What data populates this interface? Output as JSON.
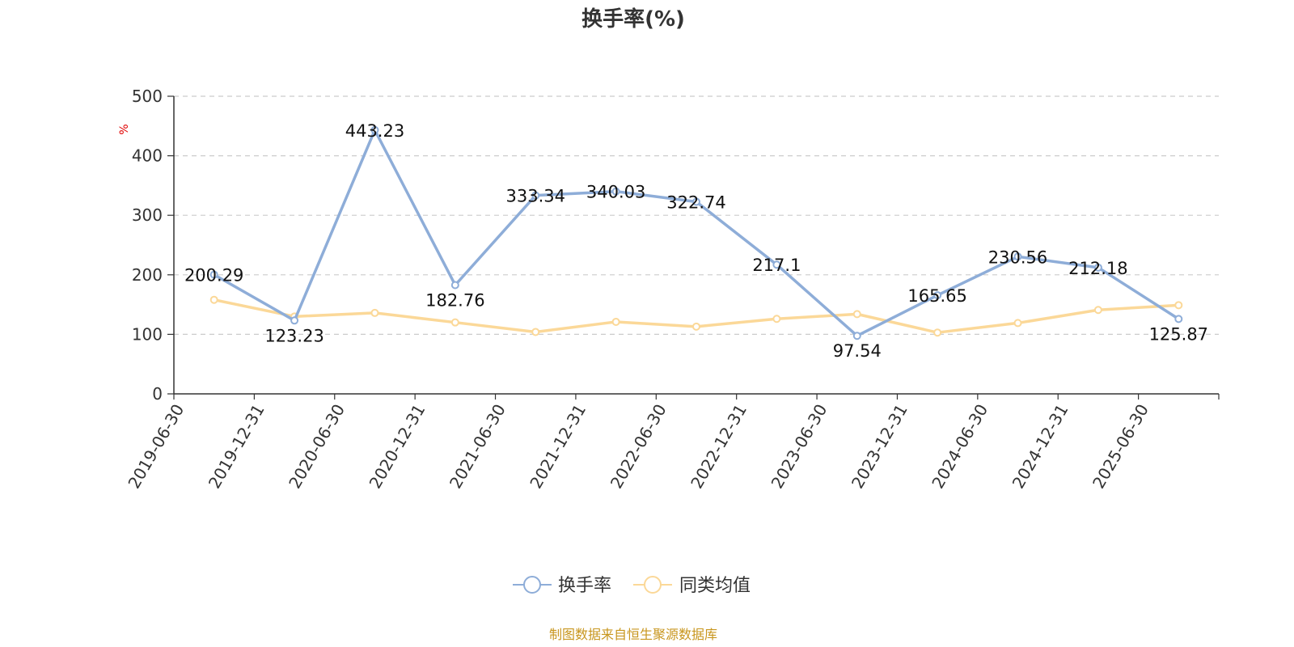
{
  "chart_data": {
    "type": "line",
    "title": "换手率(%)",
    "yunit": "%",
    "categories": [
      "2019-06-30",
      "2019-12-31",
      "2020-06-30",
      "2020-12-31",
      "2021-06-30",
      "2021-12-31",
      "2022-06-30",
      "2022-12-31",
      "2023-06-30",
      "2023-12-31",
      "2024-06-30",
      "2024-12-31",
      "2025-06-30"
    ],
    "ylim": [
      0,
      500
    ],
    "yticks": [
      0,
      100,
      200,
      300,
      400,
      500
    ],
    "grid": true,
    "legend_position": "bottom",
    "series": [
      {
        "name": "换手率",
        "color": "#8eadd8",
        "values": [
          200.29,
          123.23,
          443.23,
          182.76,
          333.34,
          340.03,
          322.74,
          217.1,
          97.54,
          165.65,
          230.56,
          212.18,
          125.87
        ],
        "labels": [
          "200.29",
          "123.23",
          "443.23",
          "182.76",
          "333.34",
          "340.03",
          "322.74",
          "217.1",
          "97.54",
          "165.65",
          "230.56",
          "212.18",
          "125.87"
        ]
      },
      {
        "name": "同类均值",
        "color": "#fbd898",
        "values": [
          158,
          130,
          136,
          120,
          104,
          121,
          113,
          126,
          134,
          103,
          119,
          141,
          149
        ]
      }
    ]
  },
  "footer": {
    "source": "制图数据来自恒生聚源数据库",
    "source_color": "#c8961e"
  },
  "colors": {
    "unit_color": "#e00000"
  }
}
